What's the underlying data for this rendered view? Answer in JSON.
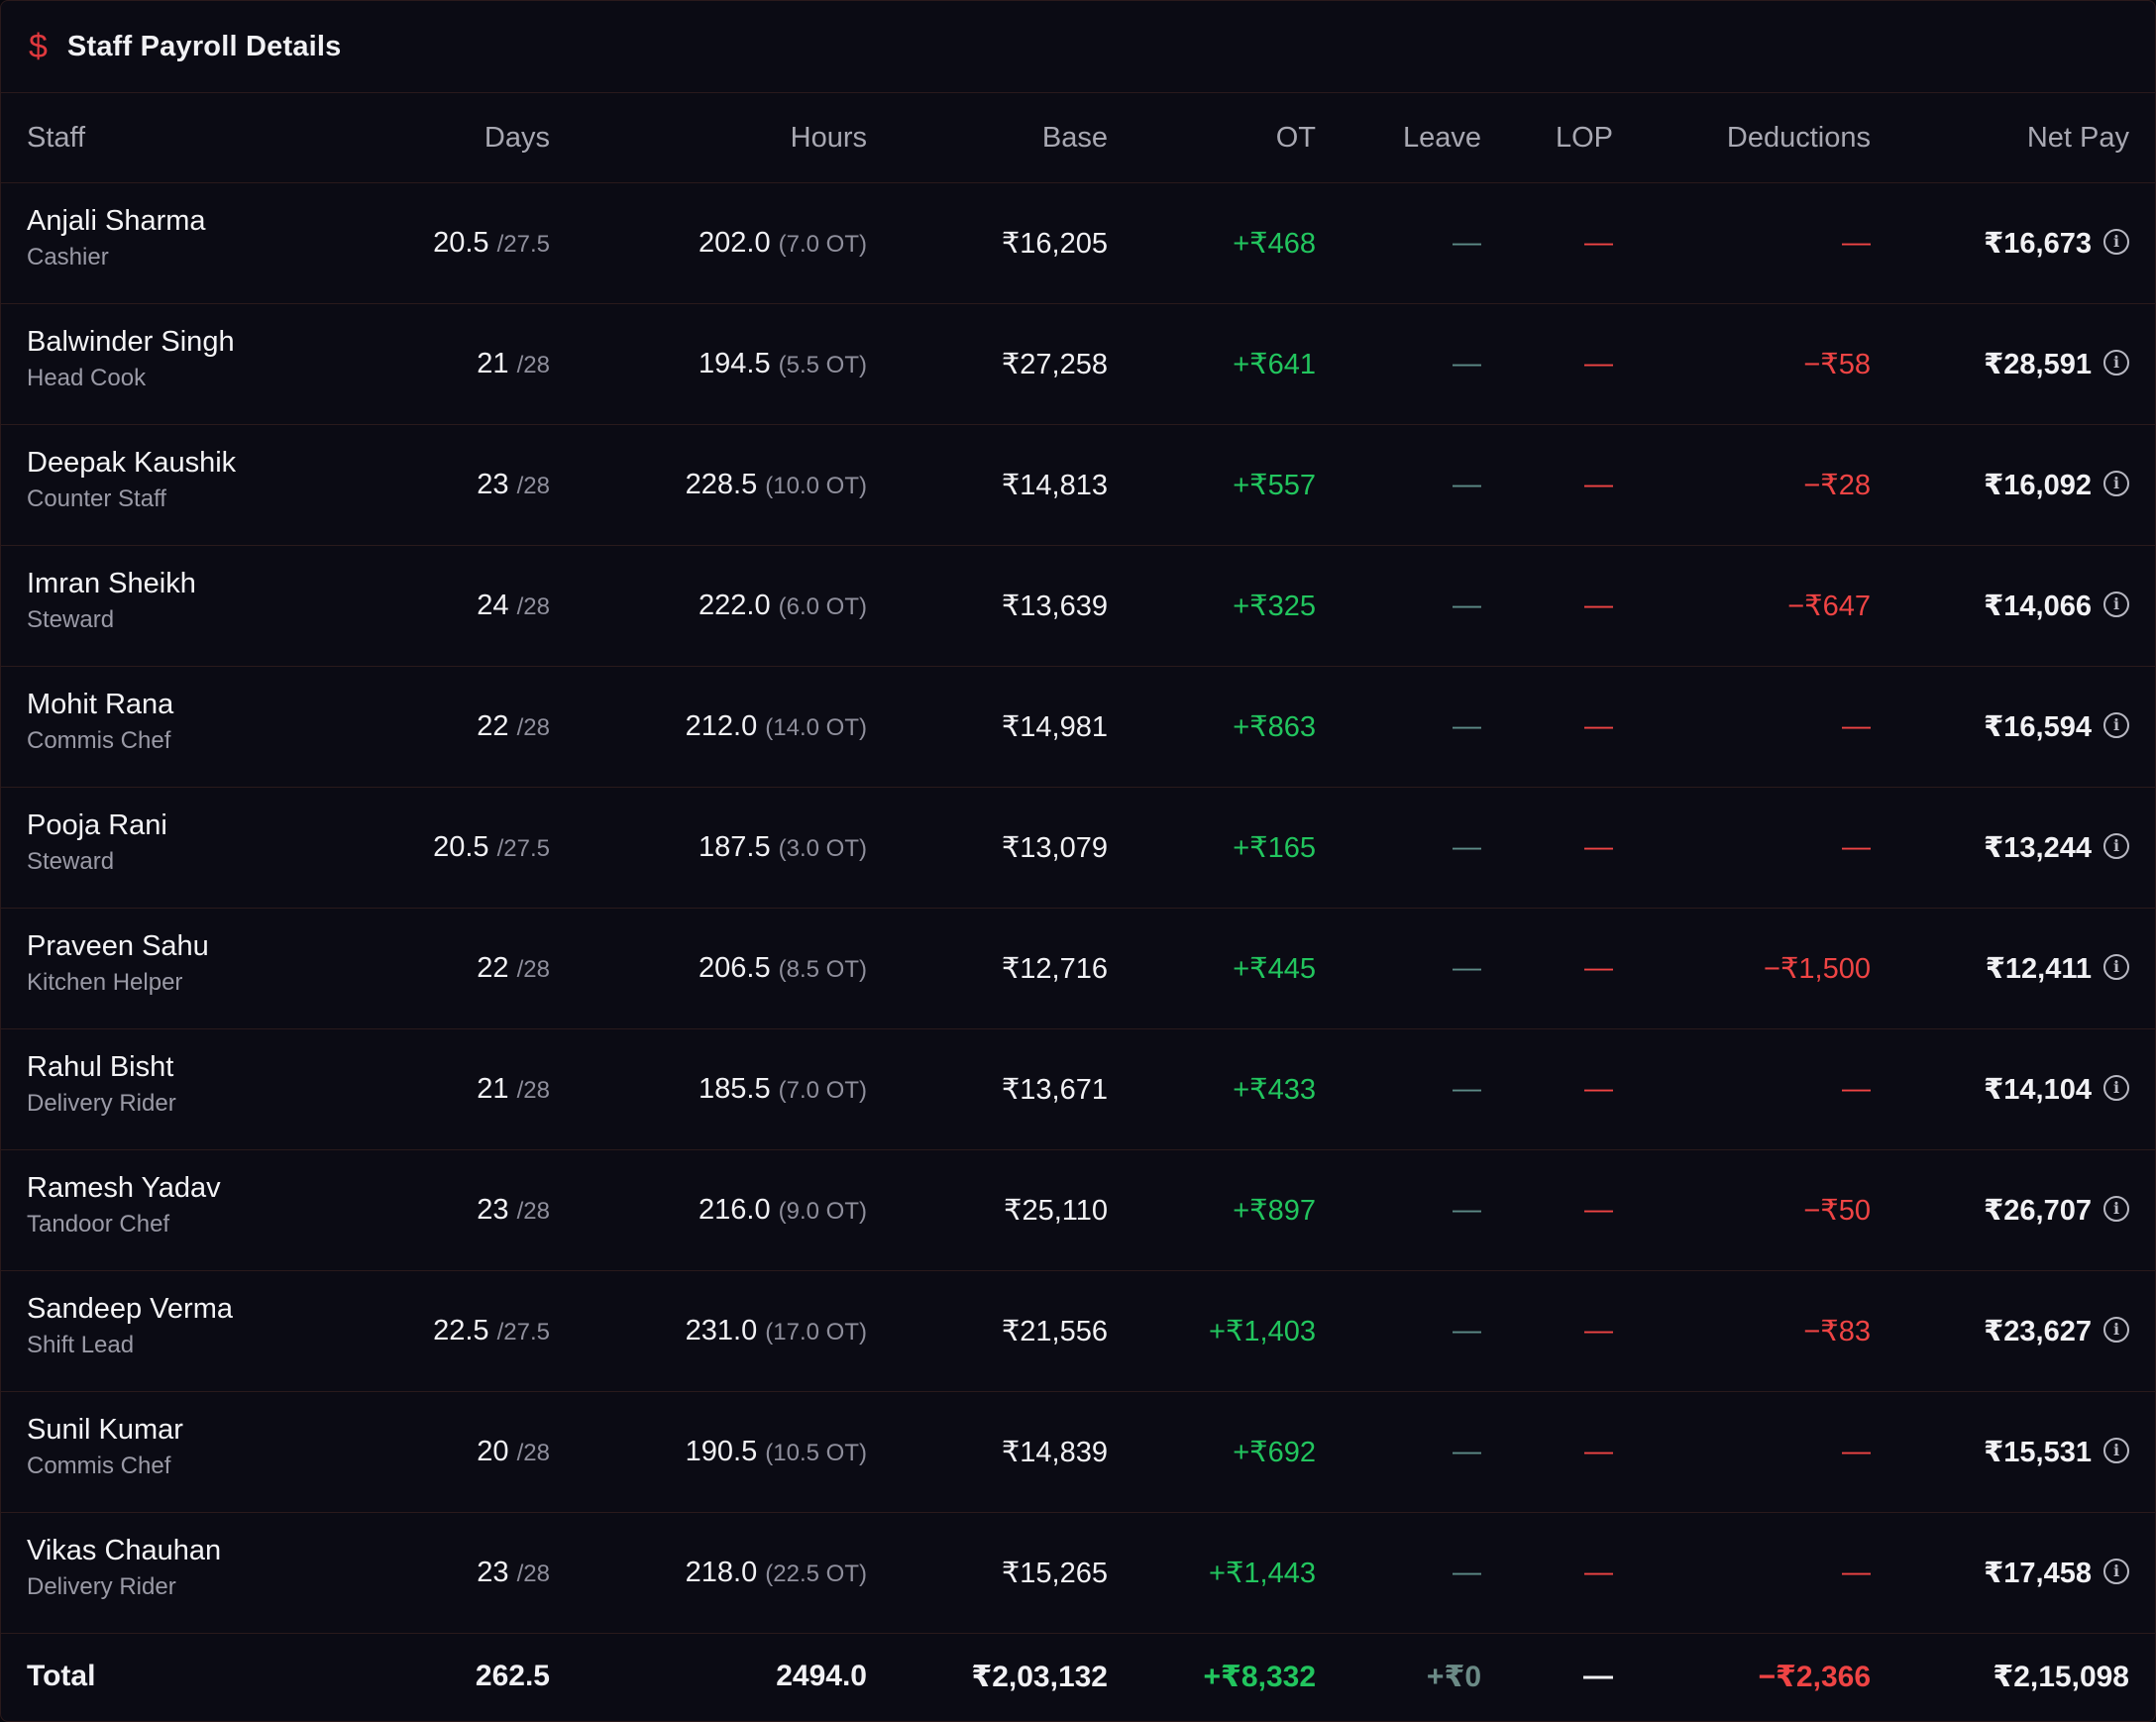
{
  "header": {
    "title": "Staff Payroll Details",
    "icon": "dollar-icon"
  },
  "columns": {
    "staff": "Staff",
    "days": "Days",
    "hours": "Hours",
    "base": "Base",
    "ot": "OT",
    "leave": "Leave",
    "lop": "LOP",
    "deductions": "Deductions",
    "net": "Net Pay"
  },
  "rows": [
    {
      "name": "Anjali Sharma",
      "role": "Cashier",
      "days": "20.5",
      "days_of": "/27.5",
      "hours": "202.0",
      "hours_ot": "(7.0 OT)",
      "base": "₹16,205",
      "ot": "+₹468",
      "leave": "—",
      "lop": "—",
      "deductions": "—",
      "net": "₹16,673"
    },
    {
      "name": "Balwinder Singh",
      "role": "Head Cook",
      "days": "21",
      "days_of": "/28",
      "hours": "194.5",
      "hours_ot": "(5.5 OT)",
      "base": "₹27,258",
      "ot": "+₹641",
      "leave": "—",
      "lop": "—",
      "deductions": "−₹58",
      "net": "₹28,591"
    },
    {
      "name": "Deepak Kaushik",
      "role": "Counter Staff",
      "days": "23",
      "days_of": "/28",
      "hours": "228.5",
      "hours_ot": "(10.0 OT)",
      "base": "₹14,813",
      "ot": "+₹557",
      "leave": "—",
      "lop": "—",
      "deductions": "−₹28",
      "net": "₹16,092"
    },
    {
      "name": "Imran Sheikh",
      "role": "Steward",
      "days": "24",
      "days_of": "/28",
      "hours": "222.0",
      "hours_ot": "(6.0 OT)",
      "base": "₹13,639",
      "ot": "+₹325",
      "leave": "—",
      "lop": "—",
      "deductions": "−₹647",
      "net": "₹14,066"
    },
    {
      "name": "Mohit Rana",
      "role": "Commis Chef",
      "days": "22",
      "days_of": "/28",
      "hours": "212.0",
      "hours_ot": "(14.0 OT)",
      "base": "₹14,981",
      "ot": "+₹863",
      "leave": "—",
      "lop": "—",
      "deductions": "—",
      "net": "₹16,594"
    },
    {
      "name": "Pooja Rani",
      "role": "Steward",
      "days": "20.5",
      "days_of": "/27.5",
      "hours": "187.5",
      "hours_ot": "(3.0 OT)",
      "base": "₹13,079",
      "ot": "+₹165",
      "leave": "—",
      "lop": "—",
      "deductions": "—",
      "net": "₹13,244"
    },
    {
      "name": "Praveen Sahu",
      "role": "Kitchen Helper",
      "days": "22",
      "days_of": "/28",
      "hours": "206.5",
      "hours_ot": "(8.5 OT)",
      "base": "₹12,716",
      "ot": "+₹445",
      "leave": "—",
      "lop": "—",
      "deductions": "−₹1,500",
      "net": "₹12,411"
    },
    {
      "name": "Rahul Bisht",
      "role": "Delivery Rider",
      "days": "21",
      "days_of": "/28",
      "hours": "185.5",
      "hours_ot": "(7.0 OT)",
      "base": "₹13,671",
      "ot": "+₹433",
      "leave": "—",
      "lop": "—",
      "deductions": "—",
      "net": "₹14,104"
    },
    {
      "name": "Ramesh Yadav",
      "role": "Tandoor Chef",
      "days": "23",
      "days_of": "/28",
      "hours": "216.0",
      "hours_ot": "(9.0 OT)",
      "base": "₹25,110",
      "ot": "+₹897",
      "leave": "—",
      "lop": "—",
      "deductions": "−₹50",
      "net": "₹26,707"
    },
    {
      "name": "Sandeep Verma",
      "role": "Shift Lead",
      "days": "22.5",
      "days_of": "/27.5",
      "hours": "231.0",
      "hours_ot": "(17.0 OT)",
      "base": "₹21,556",
      "ot": "+₹1,403",
      "leave": "—",
      "lop": "—",
      "deductions": "−₹83",
      "net": "₹23,627"
    },
    {
      "name": "Sunil Kumar",
      "role": "Commis Chef",
      "days": "20",
      "days_of": "/28",
      "hours": "190.5",
      "hours_ot": "(10.5 OT)",
      "base": "₹14,839",
      "ot": "+₹692",
      "leave": "—",
      "lop": "—",
      "deductions": "—",
      "net": "₹15,531"
    },
    {
      "name": "Vikas Chauhan",
      "role": "Delivery Rider",
      "days": "23",
      "days_of": "/28",
      "hours": "218.0",
      "hours_ot": "(22.5 OT)",
      "base": "₹15,265",
      "ot": "+₹1,443",
      "leave": "—",
      "lop": "—",
      "deductions": "—",
      "net": "₹17,458"
    }
  ],
  "total": {
    "label": "Total",
    "days": "262.5",
    "hours": "2494.0",
    "base": "₹2,03,132",
    "ot": "+₹8,332",
    "leave": "+₹0",
    "lop": "—",
    "deductions": "−₹2,366",
    "net": "₹2,15,098"
  },
  "colors": {
    "positive": "#22c55e",
    "negative": "#ef4444",
    "neutral": "#5d8b87",
    "accent": "#e0393e"
  }
}
